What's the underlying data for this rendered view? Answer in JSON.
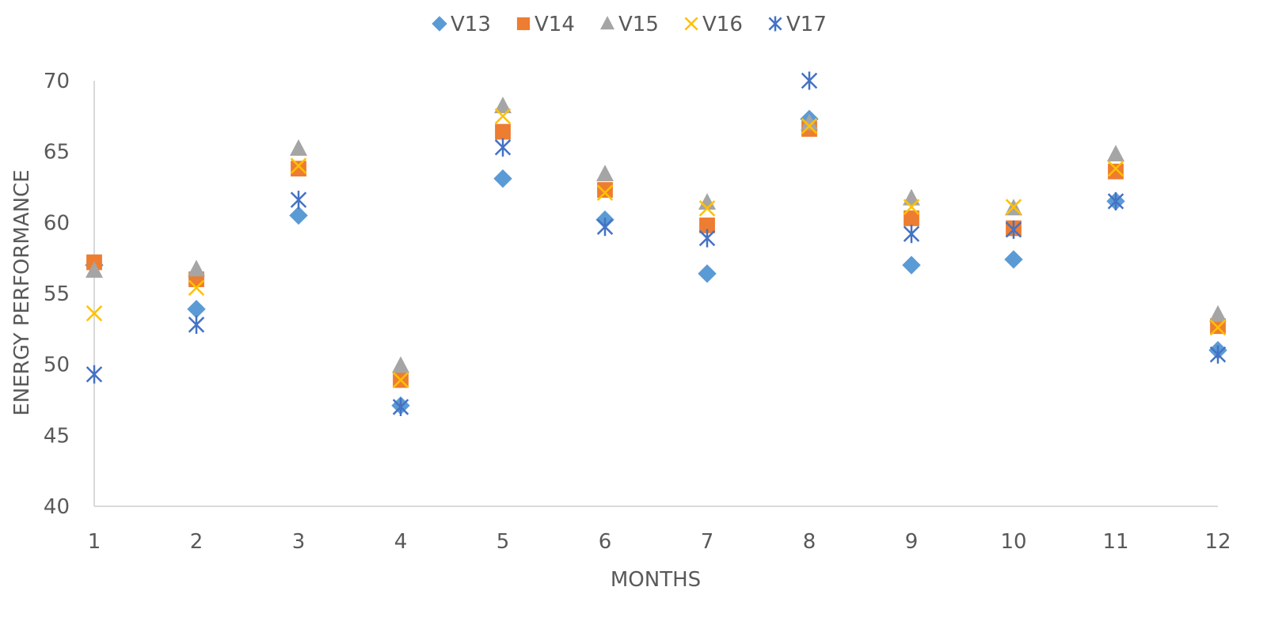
{
  "chart_data": {
    "type": "scatter",
    "title": "",
    "xlabel": "MONTHS",
    "ylabel": "ENERGY PERFORMANCE",
    "xlim": [
      1,
      12
    ],
    "ylim": [
      40,
      70
    ],
    "x_ticks": [
      "1",
      "2",
      "3",
      "4",
      "5",
      "6",
      "7",
      "8",
      "9",
      "10",
      "11",
      "12"
    ],
    "y_ticks": [
      "40",
      "45",
      "50",
      "55",
      "60",
      "65",
      "70"
    ],
    "legend_position": "top",
    "grid": false,
    "x": [
      1,
      2,
      3,
      4,
      5,
      6,
      7,
      8,
      9,
      10,
      11,
      12
    ],
    "series": [
      {
        "name": "V13",
        "marker": "diamond",
        "color": "#5B9BD5",
        "values": [
          57.0,
          53.9,
          60.5,
          47.1,
          63.1,
          60.2,
          56.4,
          67.3,
          57.0,
          57.4,
          61.5,
          51.0
        ]
      },
      {
        "name": "V14",
        "marker": "square",
        "color": "#ED7D31",
        "values": [
          57.2,
          56.0,
          63.8,
          48.9,
          66.4,
          62.3,
          59.8,
          66.6,
          60.3,
          59.6,
          63.6,
          52.7
        ]
      },
      {
        "name": "V15",
        "marker": "triangle",
        "color": "#A5A5A5",
        "values": [
          56.6,
          56.7,
          65.2,
          49.9,
          68.2,
          63.4,
          61.4,
          67.0,
          61.7,
          61.0,
          64.8,
          53.5
        ]
      },
      {
        "name": "V16",
        "marker": "x",
        "color": "#FFC000",
        "values": [
          53.6,
          55.4,
          64.0,
          48.9,
          67.5,
          62.1,
          61.0,
          66.8,
          61.1,
          61.1,
          63.8,
          52.6
        ]
      },
      {
        "name": "V17",
        "marker": "star",
        "color": "#4472C4",
        "values": [
          49.3,
          52.8,
          61.6,
          47.0,
          65.3,
          59.7,
          58.9,
          70.0,
          59.2,
          59.5,
          61.5,
          50.7
        ]
      }
    ]
  }
}
